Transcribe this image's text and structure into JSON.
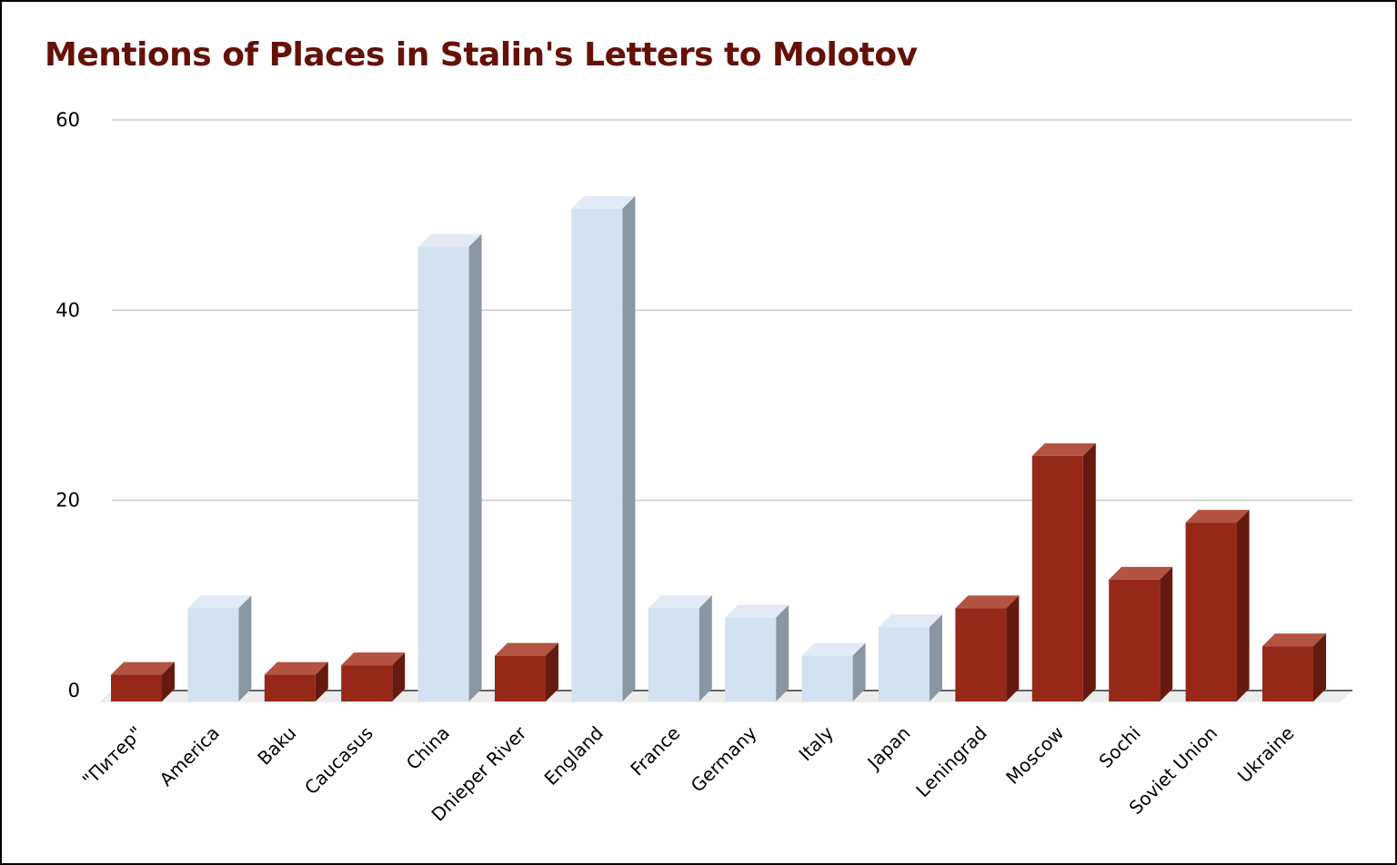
{
  "chart_data": {
    "type": "bar",
    "style": "3d",
    "title": "Mentions of Places in Stalin's Letters to Molotov",
    "title_color": "#651108",
    "xlabel": "",
    "ylabel": "",
    "ylim": [
      0,
      60
    ],
    "yticks": [
      "0",
      "20",
      "40",
      "60"
    ],
    "grid": true,
    "legend": "none",
    "colors": {
      "red_front": "#962817",
      "red_top": "#B35342",
      "red_side": "#661A0F",
      "blue_front": "#D3E1F0",
      "blue_top": "#E2EBF5",
      "blue_side": "#8A96A2",
      "grid": "#C8C8C8",
      "baseline": "#333333",
      "floor": "#EDEDED"
    },
    "categories": [
      "\"Питер\"",
      "America",
      "Baku",
      "Caucasus",
      "China",
      "Dnieper River",
      "England",
      "France",
      "Germany",
      "Italy",
      "Japan",
      "Leningrad",
      "Moscow",
      "Sochi",
      "Soviet Union",
      "Ukraine"
    ],
    "values": [
      3,
      10,
      3,
      4,
      48,
      5,
      52,
      10,
      9,
      5,
      8,
      10,
      26,
      13,
      19,
      6
    ],
    "bar_colors": [
      "red",
      "blue",
      "red",
      "red",
      "blue",
      "red",
      "blue",
      "blue",
      "blue",
      "blue",
      "blue",
      "red",
      "red",
      "red",
      "red",
      "red"
    ]
  }
}
